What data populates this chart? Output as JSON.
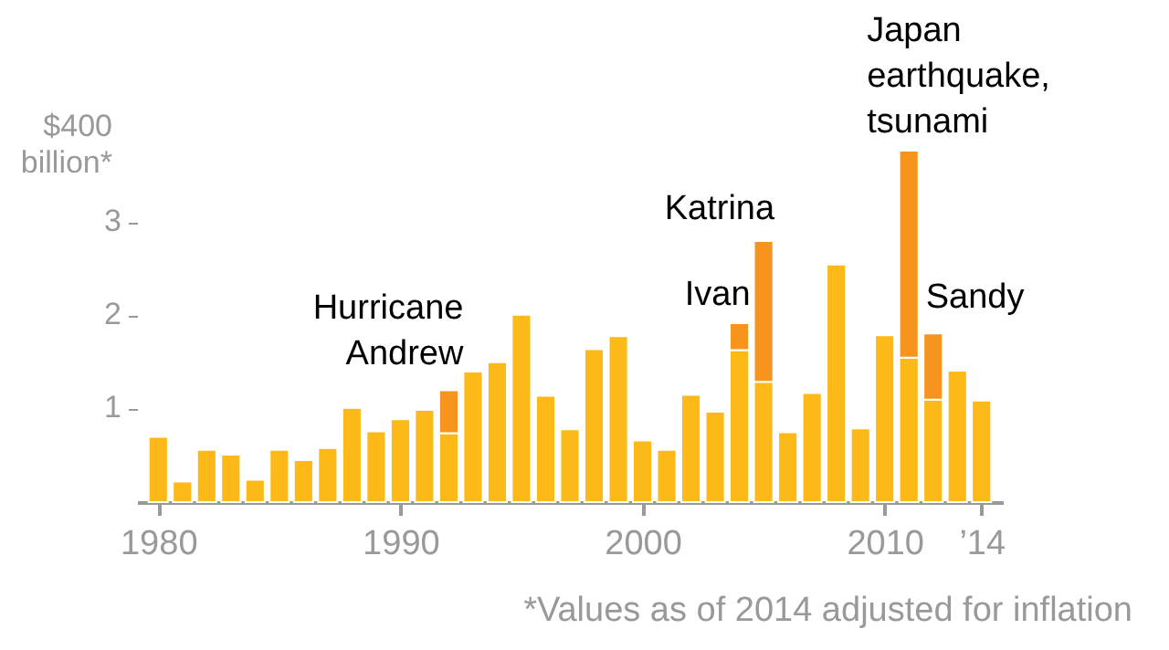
{
  "chart_data": {
    "type": "bar",
    "stacked": true,
    "x": [
      1980,
      1981,
      1982,
      1983,
      1984,
      1985,
      1986,
      1987,
      1988,
      1989,
      1990,
      1991,
      1992,
      1993,
      1994,
      1995,
      1996,
      1997,
      1998,
      1999,
      2000,
      2001,
      2002,
      2003,
      2004,
      2005,
      2006,
      2007,
      2008,
      2009,
      2010,
      2011,
      2012,
      2013,
      2014
    ],
    "series": [
      {
        "color": "#fcb918",
        "values": [
          0.7,
          0.22,
          0.56,
          0.51,
          0.24,
          0.56,
          0.45,
          0.58,
          1.01,
          0.76,
          0.89,
          0.99,
          0.74,
          1.4,
          1.5,
          2.01,
          1.14,
          0.78,
          1.64,
          1.78,
          0.66,
          0.56,
          1.15,
          0.97,
          1.63,
          1.29,
          0.75,
          1.17,
          2.55,
          0.79,
          1.79,
          1.55,
          1.1,
          1.41,
          1.09
        ]
      },
      {
        "color": "#f7941e",
        "values": [
          null,
          null,
          null,
          null,
          null,
          null,
          null,
          null,
          null,
          null,
          null,
          null,
          0.46,
          null,
          null,
          null,
          null,
          null,
          null,
          null,
          null,
          null,
          null,
          null,
          0.29,
          1.51,
          null,
          null,
          null,
          null,
          null,
          2.22,
          0.71,
          null,
          null
        ]
      }
    ],
    "xlim": [
      1979.5,
      2014.5
    ],
    "xticks": [
      1980,
      1990,
      2000,
      2010,
      {
        "value": 2014,
        "label": "’14"
      }
    ],
    "ylim": [
      0,
      3.8
    ],
    "yticks": [
      1,
      2,
      3
    ],
    "ylabel": "$400 billion*",
    "grid": false,
    "legend": false,
    "annotations": [
      {
        "text": "Hurricane Andrew",
        "x": 1992,
        "y": 1.2
      },
      {
        "text": "Ivan",
        "x": 2004,
        "y": 1.92
      },
      {
        "text": "Katrina",
        "x": 2005,
        "y": 2.8
      },
      {
        "text": "Japan earthquake, tsunami",
        "x": 2011,
        "y": 3.77
      },
      {
        "text": "Sandy",
        "x": 2012,
        "y": 1.81
      },
      "*Values as of 2014 adjusted for inflation"
    ]
  }
}
